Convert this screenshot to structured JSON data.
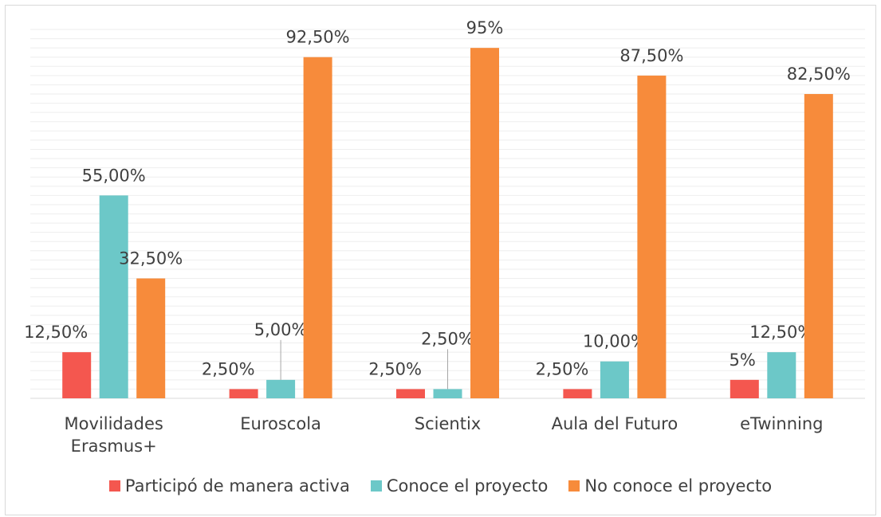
{
  "chart_data": {
    "type": "bar",
    "categories": [
      "Movilidades Erasmus+",
      "Euroscola",
      "Scientix",
      "Aula del Futuro",
      "eTwinning"
    ],
    "series": [
      {
        "name": "Participó de manera activa",
        "color": "#f4574f",
        "values": [
          12.5,
          2.5,
          2.5,
          2.5,
          5
        ],
        "value_labels": [
          "12,50%",
          "2,50%",
          "2,50%",
          "2,50%",
          "5%"
        ]
      },
      {
        "name": "Conoce el proyecto",
        "color": "#6cc8c8",
        "values": [
          55,
          5,
          2.5,
          10,
          12.5
        ],
        "value_labels": [
          "55,00%",
          "5,00%",
          "2,50%",
          "10,00%",
          "12,50%"
        ]
      },
      {
        "name": "No conoce el proyecto",
        "color": "#f78b3b",
        "values": [
          32.5,
          92.5,
          95,
          87.5,
          82.5
        ],
        "value_labels": [
          "32,50%",
          "92,50%",
          "95%",
          "87,50%",
          "82,50%"
        ]
      }
    ],
    "ylim": [
      0,
      100
    ],
    "yticks": [
      0,
      2.5,
      5,
      7.5,
      10,
      12.5,
      15,
      17.5,
      20,
      22.5,
      25,
      27.5,
      30,
      32.5,
      35,
      37.5,
      40,
      42.5,
      45,
      47.5,
      50,
      52.5,
      55,
      57.5,
      60,
      62.5,
      65,
      67.5,
      70,
      72.5,
      75,
      77.5,
      80,
      82.5,
      85,
      87.5,
      90,
      92.5,
      95,
      97.5,
      100
    ],
    "grid": true,
    "legend": "bottom"
  }
}
